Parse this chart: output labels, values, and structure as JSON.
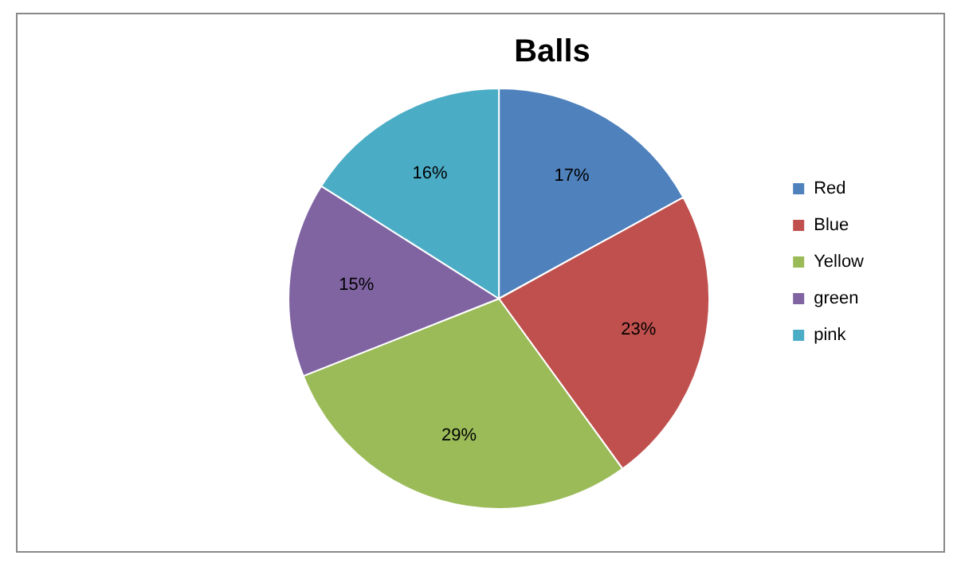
{
  "chart_data": {
    "type": "pie",
    "title": "Balls",
    "categories": [
      "Red",
      "Blue",
      "Yellow",
      "green",
      "pink"
    ],
    "values": [
      17,
      23,
      29,
      15,
      16
    ],
    "value_labels": [
      "17%",
      "23%",
      "29%",
      "15%",
      "16%"
    ],
    "colors": [
      "#4f81bd",
      "#c0504d",
      "#9bbb59",
      "#8064a2",
      "#4bacc6"
    ],
    "legend": "right"
  }
}
